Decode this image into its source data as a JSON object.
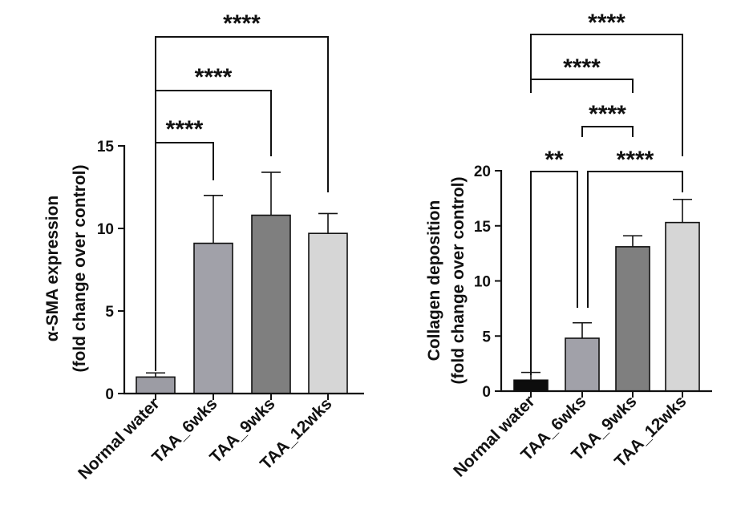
{
  "chart_data": [
    {
      "type": "bar",
      "categories": [
        "Normal water",
        "TAA_6wks",
        "TAA_9wks",
        "TAA_12wks"
      ],
      "values": [
        1.0,
        9.1,
        10.8,
        9.7
      ],
      "errors": [
        0.25,
        2.9,
        2.6,
        1.2
      ],
      "colors": [
        "#9c9ca4",
        "#a1a1a9",
        "#7f7f7f",
        "#d6d6d6"
      ],
      "ylabel_lines": [
        "α-SMA expression",
        "(fold change over control)"
      ],
      "ylim": [
        0,
        15
      ],
      "yticks": [
        "0",
        "5",
        "10",
        "15"
      ],
      "significance": [
        {
          "from": "Normal water",
          "to": "TAA_6wks",
          "label": "****"
        },
        {
          "from": "Normal water",
          "to": "TAA_9wks",
          "label": "****"
        },
        {
          "from": "Normal water",
          "to": "TAA_12wks",
          "label": "****"
        }
      ],
      "grid": false,
      "legend": "none"
    },
    {
      "type": "bar",
      "categories": [
        "Normal water",
        "TAA_6wks",
        "TAA_9wks",
        "TAA_12wks"
      ],
      "values": [
        1.0,
        4.8,
        13.1,
        15.3
      ],
      "errors": [
        0.7,
        1.4,
        1.0,
        2.1
      ],
      "colors": [
        "#0d0d0d",
        "#a1a1a9",
        "#7f7f7f",
        "#d6d6d6"
      ],
      "ylabel_lines": [
        "Collagen deposition",
        "(fold change over control)"
      ],
      "ylim": [
        0,
        20
      ],
      "yticks": [
        "0",
        "5",
        "10",
        "15",
        "20"
      ],
      "significance": [
        {
          "from": "Normal water",
          "to": "TAA_6wks",
          "label": "**"
        },
        {
          "from": "TAA_6wks",
          "to": "TAA_12wks",
          "label": "****"
        },
        {
          "from": "TAA_6wks",
          "to": "TAA_9wks",
          "label": "****"
        },
        {
          "from": "Normal water",
          "to": "TAA_9wks",
          "label": "****"
        },
        {
          "from": "Normal water",
          "to": "TAA_12wks",
          "label": "****"
        }
      ],
      "grid": false,
      "legend": "none"
    }
  ]
}
